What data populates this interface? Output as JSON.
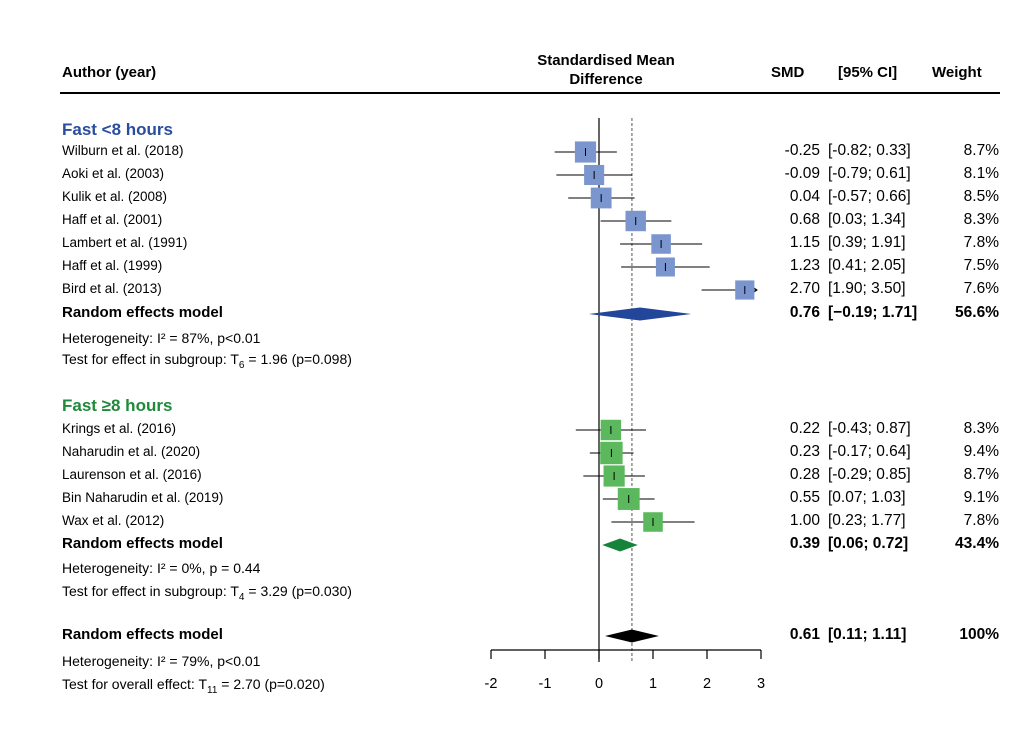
{
  "header": {
    "author": "Author (year)",
    "axis_title_line1": "Standardised Mean",
    "axis_title_line2": "Difference",
    "smd": "SMD",
    "ci": "[95% CI]",
    "weight": "Weight"
  },
  "colors": {
    "group1": "#2a4d9e",
    "group1_box": "#7b96cf",
    "group1_diamond": "#22469a",
    "group2": "#1f8a3c",
    "group2_box": "#5cb85c",
    "group2_diamond": "#16833a",
    "overall": "#000000"
  },
  "notes": {
    "g1_het": "Heterogeneity: I² = 87%, p<0.01",
    "g1_test_pre": "Test for effect in subgroup: T",
    "g1_test_sub": "6",
    "g1_test_post": " = 1.96 (p=0.098)",
    "g2_het": "Heterogeneity: I² = 0%, p = 0.44",
    "g2_test_pre": "Test for effect in subgroup: T",
    "g2_test_sub": "4",
    "g2_test_post": " = 3.29 (p=0.030)",
    "ov_het": "Heterogeneity: I² = 79%, p<0.01",
    "ov_test_pre": "Test for overall effect: T",
    "ov_test_sub": "11",
    "ov_test_post": " = 2.70 (p=0.020)"
  },
  "chart_data": {
    "type": "forest",
    "xlim": [
      -2,
      3
    ],
    "xticks": [
      "-2",
      "-1",
      "0",
      "1",
      "2",
      "3"
    ],
    "reference_line": 0,
    "overall_line": 0.61,
    "groups": [
      {
        "title": "Fast <8 hours",
        "studies": [
          {
            "author": "Wilburn et al. (2018)",
            "smd": -0.25,
            "lo": -0.82,
            "hi": 0.33,
            "smd_text": "-0.25",
            "ci_text": "[-0.82; 0.33]",
            "weight_text": "8.7%",
            "weight": 8.7
          },
          {
            "author": "Aoki et al. (2003)",
            "smd": -0.09,
            "lo": -0.79,
            "hi": 0.61,
            "smd_text": "-0.09",
            "ci_text": "[-0.79; 0.61]",
            "weight_text": "8.1%",
            "weight": 8.1
          },
          {
            "author": "Kulik et al. (2008)",
            "smd": 0.04,
            "lo": -0.57,
            "hi": 0.66,
            "smd_text": "0.04",
            "ci_text": "[-0.57; 0.66]",
            "weight_text": "8.5%",
            "weight": 8.5
          },
          {
            "author": "Haff et al. (2001)",
            "smd": 0.68,
            "lo": 0.03,
            "hi": 1.34,
            "smd_text": "0.68",
            "ci_text": "[0.03; 1.34]",
            "weight_text": "8.3%",
            "weight": 8.3
          },
          {
            "author": "Lambert et al. (1991)",
            "smd": 1.15,
            "lo": 0.39,
            "hi": 1.91,
            "smd_text": "1.15",
            "ci_text": "[0.39; 1.91]",
            "weight_text": "7.8%",
            "weight": 7.8
          },
          {
            "author": "Haff et al. (1999)",
            "smd": 1.23,
            "lo": 0.41,
            "hi": 2.05,
            "smd_text": "1.23",
            "ci_text": "[0.41; 2.05]",
            "weight_text": "7.5%",
            "weight": 7.5
          },
          {
            "author": "Bird et al. (2013)",
            "smd": 2.7,
            "lo": 1.9,
            "hi": 3.5,
            "smd_text": "2.70",
            "ci_text": "[1.90; 3.50]",
            "weight_text": "7.6%",
            "weight": 7.6
          }
        ],
        "model": {
          "label": "Random effects model",
          "smd": 0.76,
          "lo": -0.19,
          "hi": 1.71,
          "smd_text": "0.76",
          "ci_text": "[−0.19; 1.71]",
          "weight_text": "56.6%"
        }
      },
      {
        "title": "Fast ≥8 hours",
        "studies": [
          {
            "author": "Krings et al. (2016)",
            "smd": 0.22,
            "lo": -0.43,
            "hi": 0.87,
            "smd_text": "0.22",
            "ci_text": "[-0.43; 0.87]",
            "weight_text": "8.3%",
            "weight": 8.3
          },
          {
            "author": "Naharudin et al. (2020)",
            "smd": 0.23,
            "lo": -0.17,
            "hi": 0.64,
            "smd_text": "0.23",
            "ci_text": "[-0.17; 0.64]",
            "weight_text": "9.4%",
            "weight": 9.4
          },
          {
            "author": "Laurenson et al. (2016)",
            "smd": 0.28,
            "lo": -0.29,
            "hi": 0.85,
            "smd_text": "0.28",
            "ci_text": "[-0.29; 0.85]",
            "weight_text": "8.7%",
            "weight": 8.7
          },
          {
            "author": "Bin Naharudin et al. (2019)",
            "smd": 0.55,
            "lo": 0.07,
            "hi": 1.03,
            "smd_text": "0.55",
            "ci_text": "[0.07; 1.03]",
            "weight_text": "9.1%",
            "weight": 9.1
          },
          {
            "author": "Wax et al. (2012)",
            "smd": 1.0,
            "lo": 0.23,
            "hi": 1.77,
            "smd_text": "1.00",
            "ci_text": "[0.23; 1.77]",
            "weight_text": "7.8%",
            "weight": 7.8
          }
        ],
        "model": {
          "label": "Random effects model",
          "smd": 0.39,
          "lo": 0.06,
          "hi": 0.72,
          "smd_text": "0.39",
          "ci_text": "[0.06; 0.72]",
          "weight_text": "43.4%"
        }
      }
    ],
    "overall": {
      "label": "Random effects model",
      "smd": 0.61,
      "lo": 0.11,
      "hi": 1.11,
      "smd_text": "0.61",
      "ci_text": "[0.11; 1.11]",
      "weight_text": "100%"
    }
  }
}
